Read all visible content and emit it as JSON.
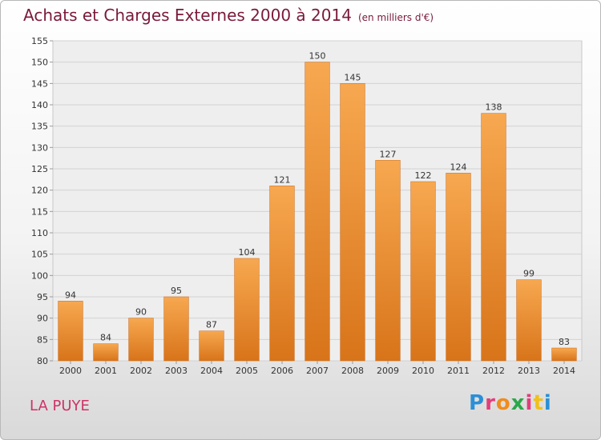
{
  "header": {
    "title": "Achats et Charges Externes 2000 à 2014",
    "unit": "(en milliers d'€)"
  },
  "footer": {
    "location": "LA PUYE",
    "brand": [
      "P",
      "r",
      "o",
      "x",
      "i",
      "t",
      "i"
    ],
    "brand_colors": [
      "#2a8fd6",
      "#e23d7a",
      "#f08c1c",
      "#2aa84a",
      "#e23d7a",
      "#f0c01c",
      "#2a8fd6"
    ]
  },
  "chart_data": {
    "type": "bar",
    "title": "Achats et Charges Externes 2000 à 2014",
    "subtitle": "(en milliers d'€)",
    "categories": [
      "2000",
      "2001",
      "2002",
      "2003",
      "2004",
      "2005",
      "2006",
      "2007",
      "2008",
      "2009",
      "2010",
      "2011",
      "2012",
      "2013",
      "2014"
    ],
    "values": [
      94,
      84,
      90,
      95,
      87,
      104,
      121,
      150,
      145,
      127,
      122,
      124,
      138,
      99,
      83
    ],
    "ylim": [
      80,
      155
    ],
    "yticks": [
      80,
      85,
      90,
      95,
      100,
      105,
      110,
      115,
      120,
      125,
      130,
      135,
      140,
      145,
      150,
      155
    ],
    "grid": true,
    "bar_color": "#f0902e",
    "xlabel": "",
    "ylabel": ""
  }
}
